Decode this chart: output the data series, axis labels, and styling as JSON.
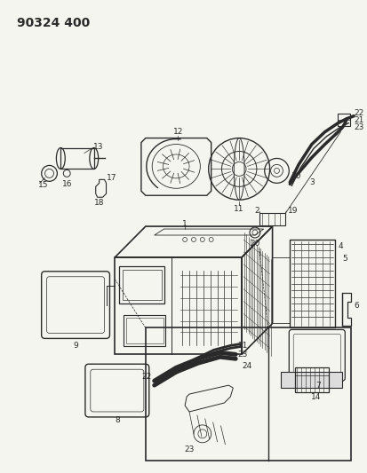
{
  "title": "90324 400",
  "bg_color": "#f5f5f0",
  "fig_width": 4.13,
  "fig_height": 5.33,
  "dpi": 100,
  "lc": "#2a2a2a",
  "title_fontsize": 10,
  "label_fontsize": 6.5
}
